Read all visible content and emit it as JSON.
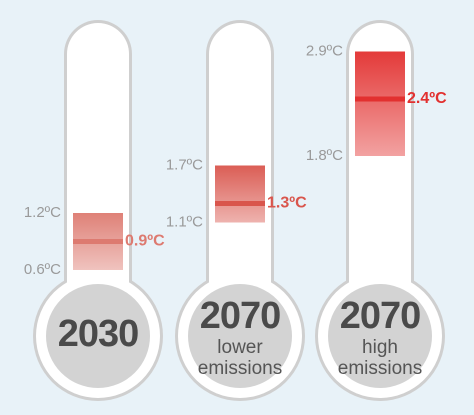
{
  "chart_data": {
    "type": "thermometer",
    "ylim": [
      0,
      3
    ],
    "thermometers": [
      {
        "year": "2030",
        "values": [
          0.6,
          1.2,
          0.9
        ],
        "value_labels": [
          "0.6ºC",
          "1.2ºC",
          "0.9ºC"
        ],
        "color": "#dd7a70"
      },
      {
        "year": "2070",
        "scenario": [
          "lower",
          "emissions"
        ],
        "values": [
          1.1,
          1.7,
          1.3
        ],
        "value_labels": [
          "1.1ºC",
          "1.7ºC",
          "1.3ºC"
        ],
        "color": "#d9554c"
      },
      {
        "year": "2070",
        "scenario": [
          "high",
          "emissions"
        ],
        "values": [
          1.8,
          2.9,
          2.4
        ],
        "value_labels": [
          "1.8ºC",
          "2.9ºC",
          "2.4ºC"
        ],
        "color": "#e2302f"
      }
    ]
  }
}
